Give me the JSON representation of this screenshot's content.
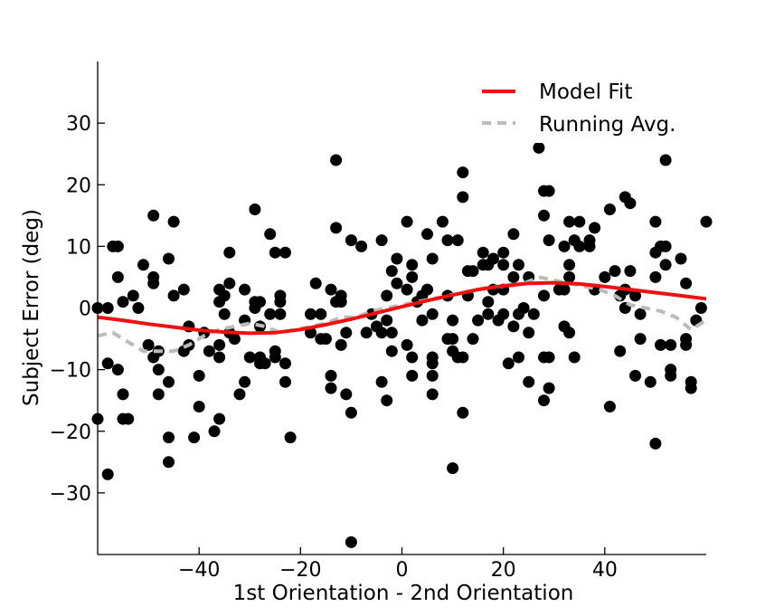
{
  "chart_data": {
    "type": "scatter",
    "xlabel": "1st Orientation - 2nd Orientation",
    "ylabel": "Subject Error (deg)",
    "xlim": [
      -60,
      60
    ],
    "ylim": [
      -40,
      40
    ],
    "xticks": [
      -40,
      -20,
      0,
      20,
      40
    ],
    "yticks": [
      -30,
      -20,
      -10,
      0,
      10,
      20,
      30
    ],
    "xtick_labels": [
      "−40",
      "−20",
      "0",
      "20",
      "40"
    ],
    "ytick_labels": [
      "−30",
      "−20",
      "−10",
      "0",
      "10",
      "20",
      "30"
    ],
    "grid": false,
    "legend_position": "top-right",
    "colors": {
      "points": "#000000",
      "model_fit": "#ee1111",
      "running_avg": "#bbbbbb"
    },
    "series": [
      {
        "name": "Model Fit",
        "kind": "line",
        "x": [
          -60,
          -55,
          -50,
          -45,
          -40,
          -35,
          -30,
          -25,
          -20,
          -15,
          -10,
          -5,
          0,
          5,
          10,
          15,
          20,
          25,
          30,
          35,
          40,
          45,
          50,
          55,
          60
        ],
        "y": [
          -1.5,
          -2.0,
          -2.6,
          -3.1,
          -3.6,
          -3.9,
          -4.1,
          -4.0,
          -3.5,
          -2.7,
          -1.8,
          -0.8,
          0.2,
          1.2,
          2.1,
          3.0,
          3.6,
          4.0,
          4.1,
          3.9,
          3.5,
          3.0,
          2.5,
          2.0,
          1.5
        ]
      },
      {
        "name": "Running Avg.",
        "kind": "dashed-line",
        "x": [
          -60,
          -57,
          -54,
          -51,
          -48,
          -45,
          -42,
          -39,
          -36,
          -33,
          -30,
          -27,
          -24,
          -21,
          -18,
          -15,
          -12,
          -9,
          -6,
          -3,
          0,
          3,
          6,
          9,
          12,
          15,
          18,
          21,
          24,
          27,
          30,
          33,
          36,
          39,
          42,
          45,
          48,
          51,
          54,
          57,
          60
        ],
        "y": [
          -4.5,
          -4.0,
          -5.5,
          -7.0,
          -7.0,
          -7.0,
          -6.0,
          -4.5,
          -3.5,
          -3.0,
          -2.5,
          -3.0,
          -4.0,
          -3.5,
          -3.0,
          -2.5,
          -1.5,
          -1.5,
          -0.5,
          0.0,
          0.5,
          1.0,
          1.5,
          2.0,
          2.5,
          3.0,
          3.5,
          3.5,
          4.0,
          5.0,
          4.5,
          4.0,
          3.5,
          3.0,
          2.0,
          0.5,
          0.0,
          -0.5,
          -1.5,
          -3.5,
          -2.0
        ]
      },
      {
        "name": "",
        "kind": "scatter",
        "points": [
          [
            -60,
            -18
          ],
          [
            -60,
            0
          ],
          [
            -58,
            0
          ],
          [
            -58,
            -27
          ],
          [
            -58,
            -9
          ],
          [
            -57,
            10
          ],
          [
            -56,
            10
          ],
          [
            -56,
            5
          ],
          [
            -56,
            -10
          ],
          [
            -55,
            1
          ],
          [
            -55,
            -14
          ],
          [
            -55,
            -18
          ],
          [
            -54,
            -18
          ],
          [
            -53,
            2
          ],
          [
            -52,
            0
          ],
          [
            -51,
            7
          ],
          [
            -50,
            -6
          ],
          [
            -49,
            15
          ],
          [
            -49,
            5
          ],
          [
            -49,
            4
          ],
          [
            -49,
            -8
          ],
          [
            -48,
            -7
          ],
          [
            -48,
            -10
          ],
          [
            -48,
            -14
          ],
          [
            -46,
            -12
          ],
          [
            -46,
            -21
          ],
          [
            -46,
            -25
          ],
          [
            -46,
            8
          ],
          [
            -45,
            14
          ],
          [
            -45,
            2
          ],
          [
            -43,
            3
          ],
          [
            -43,
            -7
          ],
          [
            -42,
            -3
          ],
          [
            -42,
            -6
          ],
          [
            -41,
            -21
          ],
          [
            -40,
            -11
          ],
          [
            -40,
            -16
          ],
          [
            -39,
            -4
          ],
          [
            -38,
            -7
          ],
          [
            -37,
            -20
          ],
          [
            -36,
            -18
          ],
          [
            -36,
            -8
          ],
          [
            -36,
            -6
          ],
          [
            -36,
            1
          ],
          [
            -36,
            3
          ],
          [
            -35,
            2
          ],
          [
            -35,
            -1
          ],
          [
            -34,
            9
          ],
          [
            -34,
            4
          ],
          [
            -34,
            -4
          ],
          [
            -33,
            -5
          ],
          [
            -32,
            -14
          ],
          [
            -31,
            -12
          ],
          [
            -31,
            -2
          ],
          [
            -31,
            3
          ],
          [
            -30,
            -8
          ],
          [
            -29,
            16
          ],
          [
            -29,
            0
          ],
          [
            -29,
            1
          ],
          [
            -28,
            -3
          ],
          [
            -28,
            1
          ],
          [
            -28,
            -8
          ],
          [
            -28,
            -9
          ],
          [
            -27,
            -9
          ],
          [
            -26,
            12
          ],
          [
            -26,
            -1
          ],
          [
            -25,
            9
          ],
          [
            -25,
            -7
          ],
          [
            -25,
            -8
          ],
          [
            -24,
            2
          ],
          [
            -24,
            1
          ],
          [
            -24,
            -1
          ],
          [
            -23,
            9
          ],
          [
            -23,
            -9
          ],
          [
            -23,
            -12
          ],
          [
            -22,
            -21
          ],
          [
            -18,
            -1
          ],
          [
            -18,
            -4
          ],
          [
            -17,
            4
          ],
          [
            -16,
            -1
          ],
          [
            -16,
            -5
          ],
          [
            -15,
            -5
          ],
          [
            -14,
            -11
          ],
          [
            -14,
            -13
          ],
          [
            -14,
            3
          ],
          [
            -13,
            24
          ],
          [
            -13,
            13
          ],
          [
            -13,
            1
          ],
          [
            -12,
            2
          ],
          [
            -12,
            1
          ],
          [
            -12,
            -6
          ],
          [
            -11,
            -14
          ],
          [
            -11,
            -4
          ],
          [
            -10,
            11
          ],
          [
            -10,
            -17
          ],
          [
            -10,
            -38
          ],
          [
            -8,
            10
          ],
          [
            -7,
            -4
          ],
          [
            -6,
            -1
          ],
          [
            -5,
            -3
          ],
          [
            -4,
            -4
          ],
          [
            -4,
            11
          ],
          [
            -4,
            -12
          ],
          [
            -3,
            2
          ],
          [
            -3,
            -2
          ],
          [
            -3,
            -15
          ],
          [
            -2,
            -7
          ],
          [
            -2,
            6
          ],
          [
            -2,
            -4
          ],
          [
            -1,
            8
          ],
          [
            -1,
            4
          ],
          [
            1,
            14
          ],
          [
            1,
            3
          ],
          [
            1,
            -6
          ],
          [
            2,
            7
          ],
          [
            2,
            5
          ],
          [
            2,
            -8
          ],
          [
            2,
            -11
          ],
          [
            3,
            1
          ],
          [
            4,
            -2
          ],
          [
            4,
            2
          ],
          [
            5,
            12
          ],
          [
            5,
            3
          ],
          [
            6,
            8
          ],
          [
            6,
            -1
          ],
          [
            6,
            -8
          ],
          [
            6,
            -9
          ],
          [
            6,
            -11
          ],
          [
            6,
            -14
          ],
          [
            8,
            14
          ],
          [
            9,
            11
          ],
          [
            9,
            2
          ],
          [
            9,
            -5
          ],
          [
            10,
            -2
          ],
          [
            10,
            -5
          ],
          [
            10,
            -7
          ],
          [
            10,
            -26
          ],
          [
            11,
            11
          ],
          [
            11,
            -8
          ],
          [
            12,
            22
          ],
          [
            12,
            18
          ],
          [
            12,
            -8
          ],
          [
            12,
            -17
          ],
          [
            13,
            6
          ],
          [
            13,
            2
          ],
          [
            14,
            -5
          ],
          [
            14,
            6
          ],
          [
            15,
            -2
          ],
          [
            16,
            9
          ],
          [
            16,
            7
          ],
          [
            17,
            7
          ],
          [
            17,
            1
          ],
          [
            17,
            -1
          ],
          [
            18,
            8
          ],
          [
            18,
            3
          ],
          [
            19,
            -2
          ],
          [
            20,
            9
          ],
          [
            20,
            7
          ],
          [
            20,
            3
          ],
          [
            20,
            -1
          ],
          [
            21,
            -9
          ],
          [
            22,
            12
          ],
          [
            22,
            5
          ],
          [
            22,
            -3
          ],
          [
            23,
            7
          ],
          [
            23,
            -1
          ],
          [
            23,
            -8
          ],
          [
            24,
            0
          ],
          [
            25,
            5
          ],
          [
            25,
            -4
          ],
          [
            25,
            -12
          ],
          [
            26,
            -1
          ],
          [
            27,
            26
          ],
          [
            28,
            19
          ],
          [
            28,
            15
          ],
          [
            28,
            2
          ],
          [
            28,
            -8
          ],
          [
            28,
            -15
          ],
          [
            29,
            19
          ],
          [
            29,
            11
          ],
          [
            29,
            -8
          ],
          [
            29,
            -13
          ],
          [
            31,
            3
          ],
          [
            32,
            10
          ],
          [
            32,
            3
          ],
          [
            32,
            -3
          ],
          [
            33,
            14
          ],
          [
            33,
            7
          ],
          [
            33,
            5
          ],
          [
            33,
            -4
          ],
          [
            34,
            11
          ],
          [
            34,
            -8
          ],
          [
            35,
            14
          ],
          [
            35,
            10
          ],
          [
            37,
            11
          ],
          [
            37,
            10
          ],
          [
            38,
            13
          ],
          [
            38,
            3
          ],
          [
            40,
            5
          ],
          [
            41,
            16
          ],
          [
            41,
            -16
          ],
          [
            42,
            6
          ],
          [
            43,
            2
          ],
          [
            43,
            -7
          ],
          [
            44,
            18
          ],
          [
            44,
            3
          ],
          [
            44,
            0
          ],
          [
            45,
            17
          ],
          [
            45,
            6
          ],
          [
            46,
            2
          ],
          [
            46,
            -11
          ],
          [
            47,
            -1
          ],
          [
            47,
            -5
          ],
          [
            49,
            -12
          ],
          [
            50,
            14
          ],
          [
            50,
            9
          ],
          [
            50,
            5
          ],
          [
            50,
            -22
          ],
          [
            51,
            10
          ],
          [
            51,
            -6
          ],
          [
            52,
            24
          ],
          [
            52,
            10
          ],
          [
            52,
            7
          ],
          [
            53,
            -6
          ],
          [
            53,
            -10
          ],
          [
            53,
            -11
          ],
          [
            55,
            8
          ],
          [
            56,
            4
          ],
          [
            56,
            -5
          ],
          [
            56,
            -6
          ],
          [
            57,
            -12
          ],
          [
            57,
            -13
          ],
          [
            58,
            -2
          ],
          [
            59,
            0
          ],
          [
            60,
            14
          ]
        ]
      }
    ]
  }
}
